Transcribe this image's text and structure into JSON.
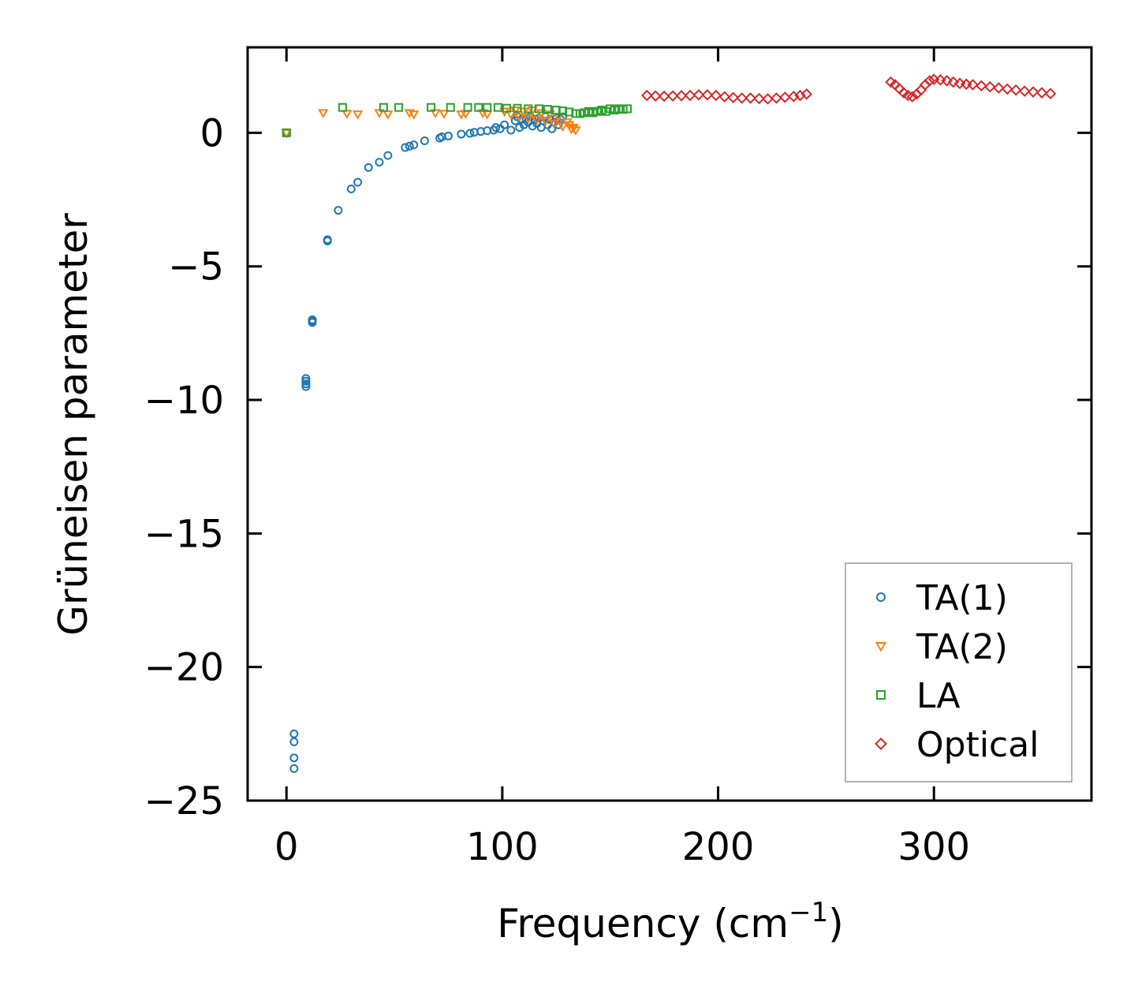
{
  "chart_data": {
    "type": "scatter",
    "title": "",
    "xlabel": "Frequency (cm",
    "xlabel_superscript": "−1",
    "xlabel_suffix": ")",
    "ylabel": "Grüneisen parameter",
    "xlim": [
      -18,
      373
    ],
    "ylim": [
      -25,
      3.2
    ],
    "xticks": [
      0,
      100,
      200,
      300
    ],
    "xtick_labels": [
      "0",
      "100",
      "200",
      "300"
    ],
    "yticks": [
      0,
      -5,
      -10,
      -15,
      -20,
      -25
    ],
    "ytick_labels": [
      "0",
      "−5",
      "−10",
      "−15",
      "−20",
      "−25"
    ],
    "grid": false,
    "legend_position": "lower-right",
    "series": [
      {
        "name": "TA(1)",
        "marker": "circle",
        "color": "#1f77b4",
        "x": [
          0,
          3.5,
          3.5,
          3.5,
          3.5,
          9,
          9,
          9,
          9,
          12,
          12,
          12,
          19,
          19,
          24,
          30,
          33,
          38,
          43,
          47,
          55,
          57,
          59,
          64,
          71,
          72,
          75,
          81,
          85,
          87,
          90,
          93,
          96,
          97,
          99,
          101,
          104,
          106,
          107,
          108,
          109,
          110,
          111,
          112,
          113,
          114,
          115,
          116,
          117,
          118,
          119,
          120,
          121,
          122,
          123,
          124,
          125,
          126,
          127,
          128
        ],
        "y": [
          0,
          -22.5,
          -22.8,
          -23.4,
          -23.8,
          -9.2,
          -9.3,
          -9.4,
          -9.5,
          -7.0,
          -7.05,
          -7.1,
          -4.0,
          -4.05,
          -2.9,
          -2.1,
          -1.85,
          -1.3,
          -1.1,
          -0.85,
          -0.55,
          -0.5,
          -0.45,
          -0.3,
          -0.2,
          -0.15,
          -0.12,
          -0.05,
          -0.02,
          0.02,
          0.05,
          0.08,
          0.1,
          0.2,
          0.15,
          0.3,
          0.1,
          0.45,
          0.6,
          0.2,
          0.5,
          0.3,
          0.55,
          0.4,
          0.6,
          0.25,
          0.5,
          0.35,
          0.55,
          0.2,
          0.45,
          0.6,
          0.3,
          0.5,
          0.15,
          0.4,
          0.55,
          0.3,
          0.5,
          0.6
        ]
      },
      {
        "name": "TA(2)",
        "marker": "triangle-down",
        "color": "#ff7f0e",
        "x": [
          0,
          17,
          28,
          33,
          43,
          47,
          57,
          59,
          69,
          73,
          81,
          83,
          91,
          93,
          101,
          104,
          106,
          108,
          110,
          112,
          114,
          116,
          118,
          120,
          122,
          124,
          126,
          128,
          130,
          131,
          132,
          133,
          134
        ],
        "y": [
          0,
          0.75,
          0.72,
          0.7,
          0.75,
          0.7,
          0.75,
          0.7,
          0.75,
          0.72,
          0.7,
          0.72,
          0.75,
          0.7,
          0.8,
          0.7,
          0.85,
          0.6,
          0.8,
          0.55,
          0.85,
          0.5,
          0.75,
          0.45,
          0.7,
          0.35,
          0.6,
          0.25,
          0.4,
          0.3,
          0.15,
          0.2,
          0.1
        ]
      },
      {
        "name": "LA",
        "marker": "square",
        "color": "#2ca02c",
        "x": [
          0,
          26,
          45,
          52,
          67,
          76,
          84,
          89,
          93,
          98,
          102,
          107,
          112,
          117,
          121,
          125,
          128,
          131,
          134,
          136,
          138,
          140,
          142,
          144,
          146,
          148,
          150,
          152,
          154,
          156,
          158
        ],
        "y": [
          0,
          0.95,
          0.95,
          0.95,
          0.95,
          0.95,
          0.95,
          0.95,
          0.95,
          0.95,
          0.92,
          0.92,
          0.9,
          0.9,
          0.88,
          0.85,
          0.82,
          0.78,
          0.72,
          0.72,
          0.75,
          0.8,
          0.75,
          0.8,
          0.85,
          0.8,
          0.9,
          0.85,
          0.9,
          0.88,
          0.9
        ]
      },
      {
        "name": "Optical",
        "marker": "diamond",
        "color": "#d62728",
        "x": [
          167,
          171,
          175,
          179,
          183,
          187,
          191,
          195,
          199,
          203,
          207,
          211,
          215,
          219,
          223,
          227,
          231,
          235,
          238,
          241,
          280,
          282,
          284,
          286,
          288,
          290,
          292,
          294,
          296,
          298,
          300,
          303,
          306,
          309,
          312,
          315,
          318,
          322,
          326,
          330,
          334,
          338,
          342,
          346,
          350,
          354
        ],
        "y": [
          1.4,
          1.38,
          1.37,
          1.38,
          1.39,
          1.4,
          1.42,
          1.42,
          1.4,
          1.35,
          1.32,
          1.3,
          1.3,
          1.28,
          1.27,
          1.3,
          1.33,
          1.36,
          1.4,
          1.45,
          1.9,
          1.8,
          1.65,
          1.5,
          1.4,
          1.35,
          1.45,
          1.6,
          1.8,
          1.95,
          2.0,
          1.98,
          1.95,
          1.9,
          1.85,
          1.82,
          1.8,
          1.76,
          1.72,
          1.68,
          1.64,
          1.6,
          1.56,
          1.53,
          1.5,
          1.47
        ]
      }
    ]
  }
}
